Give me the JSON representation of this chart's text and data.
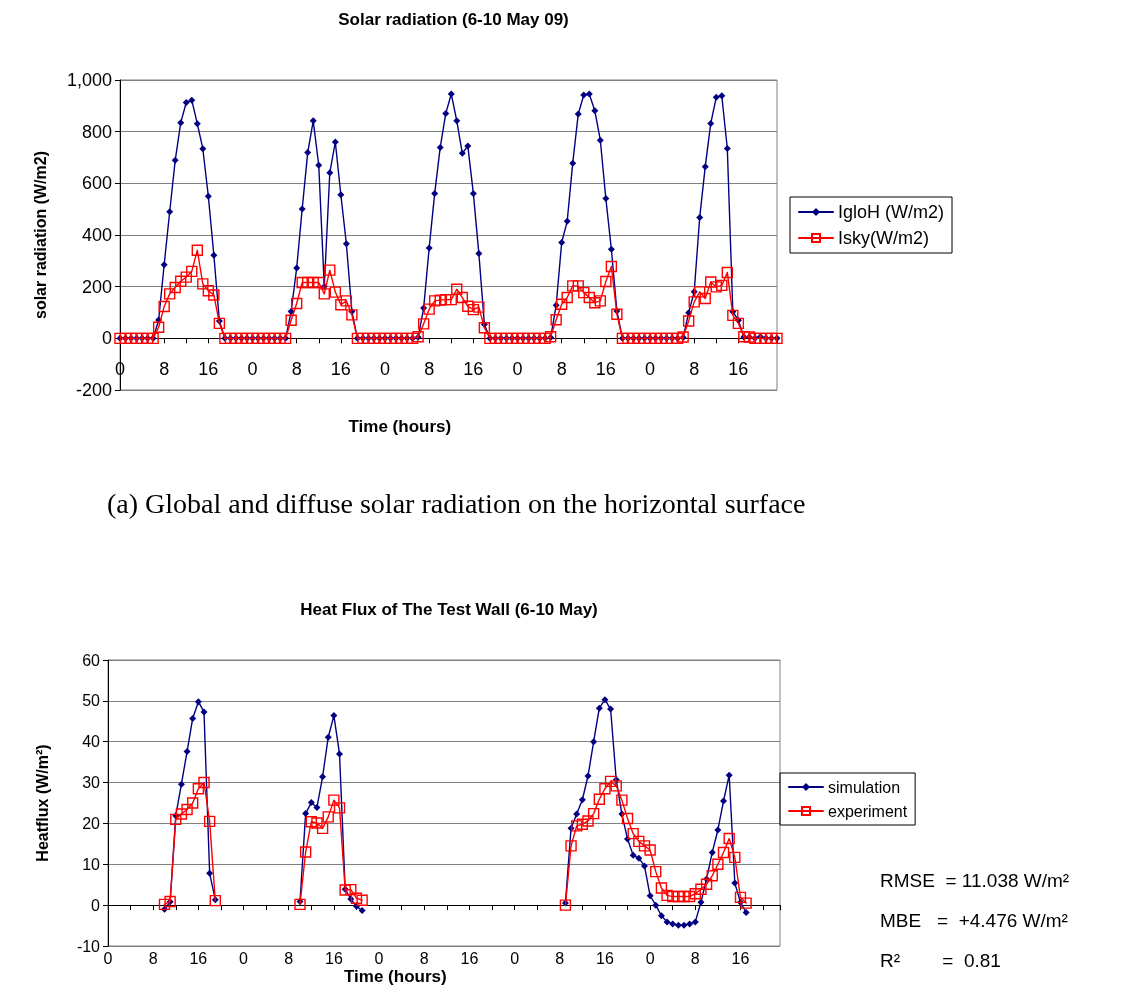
{
  "chart_data": [
    {
      "type": "line",
      "title": "Solar radiation (6-10 May 09)",
      "xlabel": "Time (hours)",
      "ylabel": "solar radiation (W/m2)",
      "annotations": [
        "(a) Global and diffuse solar radiation on the horizontal surface"
      ],
      "categories": [
        "0",
        null,
        null,
        null,
        null,
        null,
        null,
        null,
        "8",
        null,
        null,
        null,
        null,
        null,
        null,
        null,
        "16",
        null,
        null,
        null,
        null,
        null,
        null,
        null,
        "0",
        null,
        null,
        null,
        null,
        null,
        null,
        null,
        "8",
        null,
        null,
        null,
        null,
        null,
        null,
        null,
        "16",
        null,
        null,
        null,
        null,
        null,
        null,
        null,
        "0",
        null,
        null,
        null,
        null,
        null,
        null,
        null,
        "8",
        null,
        null,
        null,
        null,
        null,
        null,
        null,
        "16",
        null,
        null,
        null,
        null,
        null,
        null,
        null,
        "0",
        null,
        null,
        null,
        null,
        null,
        null,
        null,
        "8",
        null,
        null,
        null,
        null,
        null,
        null,
        null,
        "16",
        null,
        null,
        null,
        null,
        null,
        null,
        null,
        "0",
        null,
        null,
        null,
        null,
        null,
        null,
        null,
        "8",
        null,
        null,
        null,
        null,
        null,
        null,
        null,
        "16",
        null,
        null,
        null,
        null,
        null,
        null,
        null
      ],
      "series": [
        {
          "name": "IgloH (W/m2)",
          "color": "#000080",
          "marker": "diamond",
          "values": [
            0,
            0,
            0,
            0,
            0,
            0,
            0,
            71,
            285,
            490,
            689,
            835,
            913,
            922,
            831,
            734,
            550,
            322,
            67,
            0,
            0,
            0,
            0,
            0,
            0,
            0,
            0,
            0,
            0,
            0,
            0,
            104,
            272,
            501,
            719,
            842,
            670,
            201,
            641,
            760,
            556,
            366,
            104,
            0,
            0,
            0,
            0,
            0,
            0,
            0,
            0,
            0,
            0,
            0,
            4,
            117,
            350,
            561,
            739,
            870,
            946,
            842,
            716,
            745,
            561,
            328,
            54,
            0,
            0,
            0,
            0,
            0,
            0,
            0,
            0,
            0,
            0,
            0,
            3,
            128,
            371,
            453,
            678,
            868,
            942,
            946,
            881,
            767,
            541,
            345,
            106,
            0,
            0,
            0,
            0,
            0,
            0,
            0,
            0,
            0,
            0,
            0,
            3,
            99,
            180,
            468,
            664,
            832,
            933,
            939,
            735,
            103,
            70,
            5,
            5,
            0,
            6,
            0,
            0,
            0
          ]
        },
        {
          "name": "Isky(W/m2)",
          "color": "#ff0000",
          "marker": "square",
          "values": [
            0,
            0,
            0,
            0,
            0,
            0,
            0,
            43,
            123,
            172,
            197,
            221,
            237,
            259,
            341,
            211,
            184,
            168,
            58,
            0,
            0,
            0,
            0,
            0,
            0,
            0,
            0,
            0,
            0,
            0,
            0,
            70,
            135,
            216,
            216,
            216,
            216,
            172,
            264,
            179,
            130,
            145,
            91,
            0,
            0,
            0,
            0,
            0,
            0,
            0,
            0,
            0,
            0,
            0,
            6,
            56,
            113,
            145,
            148,
            150,
            150,
            190,
            158,
            124,
            111,
            121,
            41,
            0,
            0,
            0,
            0,
            0,
            0,
            0,
            0,
            0,
            0,
            0,
            6,
            72,
            132,
            158,
            203,
            203,
            177,
            158,
            138,
            145,
            220,
            278,
            93,
            0,
            0,
            0,
            0,
            0,
            0,
            0,
            0,
            0,
            0,
            0,
            5,
            67,
            141,
            180,
            154,
            218,
            199,
            205,
            255,
            89,
            58,
            6,
            5,
            0,
            0,
            0,
            0,
            0
          ]
        }
      ],
      "ylim": [
        -200,
        1000
      ],
      "yticks": [
        -200,
        0,
        200,
        400,
        600,
        800,
        {
          "value": 1000,
          "label": "1,000"
        }
      ],
      "grid": "y",
      "legend": "right",
      "line_style": "solid"
    },
    {
      "type": "line",
      "title": "Heat Flux of The Test Wall (6-10 May)",
      "xlabel": "Time (hours)",
      "ylabel": "Heatflux (W/m²)",
      "annotations": [
        "RMSE  = 11.038 W/m²",
        "MBE   =  +4.476 W/m²",
        "R²        =  0.81"
      ],
      "categories": [
        "0",
        null,
        null,
        null,
        null,
        null,
        null,
        null,
        "8",
        null,
        null,
        null,
        null,
        null,
        null,
        null,
        "16",
        null,
        null,
        null,
        null,
        null,
        null,
        null,
        "0",
        null,
        null,
        null,
        null,
        null,
        null,
        null,
        "8",
        null,
        null,
        null,
        null,
        null,
        null,
        null,
        "16",
        null,
        null,
        null,
        null,
        null,
        null,
        null,
        "0",
        null,
        null,
        null,
        null,
        null,
        null,
        null,
        "8",
        null,
        null,
        null,
        null,
        null,
        null,
        null,
        "16",
        null,
        null,
        null,
        null,
        null,
        null,
        null,
        "0",
        null,
        null,
        null,
        null,
        null,
        null,
        null,
        "8",
        null,
        null,
        null,
        null,
        null,
        null,
        null,
        "16",
        null,
        null,
        null,
        null,
        null,
        null,
        null,
        "0",
        null,
        null,
        null,
        null,
        null,
        null,
        null,
        "8",
        null,
        null,
        null,
        null,
        null,
        null,
        null,
        "16",
        null,
        null,
        null,
        null,
        null,
        null,
        null
      ],
      "series": [
        {
          "name": "simulation",
          "color": "#000080",
          "marker": "diamond",
          "values": [
            null,
            null,
            null,
            null,
            null,
            null,
            null,
            null,
            null,
            null,
            -1.0,
            0.8,
            21.9,
            29.6,
            37.6,
            45.7,
            49.8,
            47.3,
            7.8,
            1.3,
            null,
            null,
            null,
            null,
            null,
            null,
            null,
            null,
            null,
            null,
            null,
            null,
            null,
            null,
            0.9,
            22.4,
            25.1,
            23.9,
            31.4,
            41.1,
            46.4,
            37.0,
            3.9,
            1.5,
            -0.3,
            -1.3,
            null,
            null,
            null,
            null,
            null,
            null,
            null,
            null,
            null,
            null,
            null,
            null,
            null,
            null,
            null,
            null,
            null,
            null,
            null,
            null,
            null,
            null,
            null,
            null,
            null,
            null,
            null,
            null,
            null,
            null,
            null,
            null,
            null,
            null,
            null,
            0.5,
            18.8,
            22.3,
            25.8,
            31.6,
            40.0,
            48.2,
            50.3,
            48.0,
            30.7,
            22.3,
            16.2,
            12.2,
            11.5,
            9.6,
            2.3,
            0,
            -2.6,
            -4.1,
            -4.6,
            -4.9,
            -4.9,
            -4.6,
            -4.1,
            0.7,
            6.4,
            12.9,
            18.4,
            25.5,
            31.8,
            5.4,
            0.7,
            -1.8,
            null,
            null,
            null,
            null,
            null,
            null
          ]
        },
        {
          "name": "experiment",
          "color": "#ff0000",
          "marker": "square",
          "values": [
            null,
            null,
            null,
            null,
            null,
            null,
            null,
            null,
            null,
            null,
            0.2,
            0.9,
            21.0,
            22.3,
            23.4,
            25.0,
            28.5,
            30.0,
            20.5,
            1.1,
            null,
            null,
            null,
            null,
            null,
            null,
            null,
            null,
            null,
            null,
            null,
            null,
            null,
            null,
            0.2,
            13.0,
            20.4,
            20.1,
            18.8,
            21.6,
            25.7,
            23.8,
            3.7,
            3.8,
            1.7,
            1.2,
            null,
            null,
            null,
            null,
            null,
            null,
            null,
            null,
            null,
            null,
            null,
            null,
            null,
            null,
            null,
            null,
            null,
            null,
            null,
            null,
            null,
            null,
            null,
            null,
            null,
            null,
            null,
            null,
            null,
            null,
            null,
            null,
            null,
            null,
            null,
            0,
            14.5,
            19.4,
            19.8,
            20.6,
            22.4,
            25.9,
            28.5,
            30.3,
            29.2,
            25.7,
            21.2,
            17.5,
            15.6,
            14.5,
            13.5,
            8.2,
            4.2,
            2.4,
            2.1,
            2.1,
            2.1,
            2.1,
            2.8,
            3.9,
            5.1,
            7.2,
            10.0,
            12.9,
            16.3,
            11.7,
            1.9,
            0.5,
            null,
            null,
            null,
            null,
            null,
            null
          ]
        }
      ],
      "ylim": [
        -10,
        60
      ],
      "yticks": [
        -10,
        0,
        10,
        20,
        30,
        40,
        50,
        60
      ],
      "grid": "y",
      "legend": "right",
      "line_style": "solid"
    }
  ]
}
